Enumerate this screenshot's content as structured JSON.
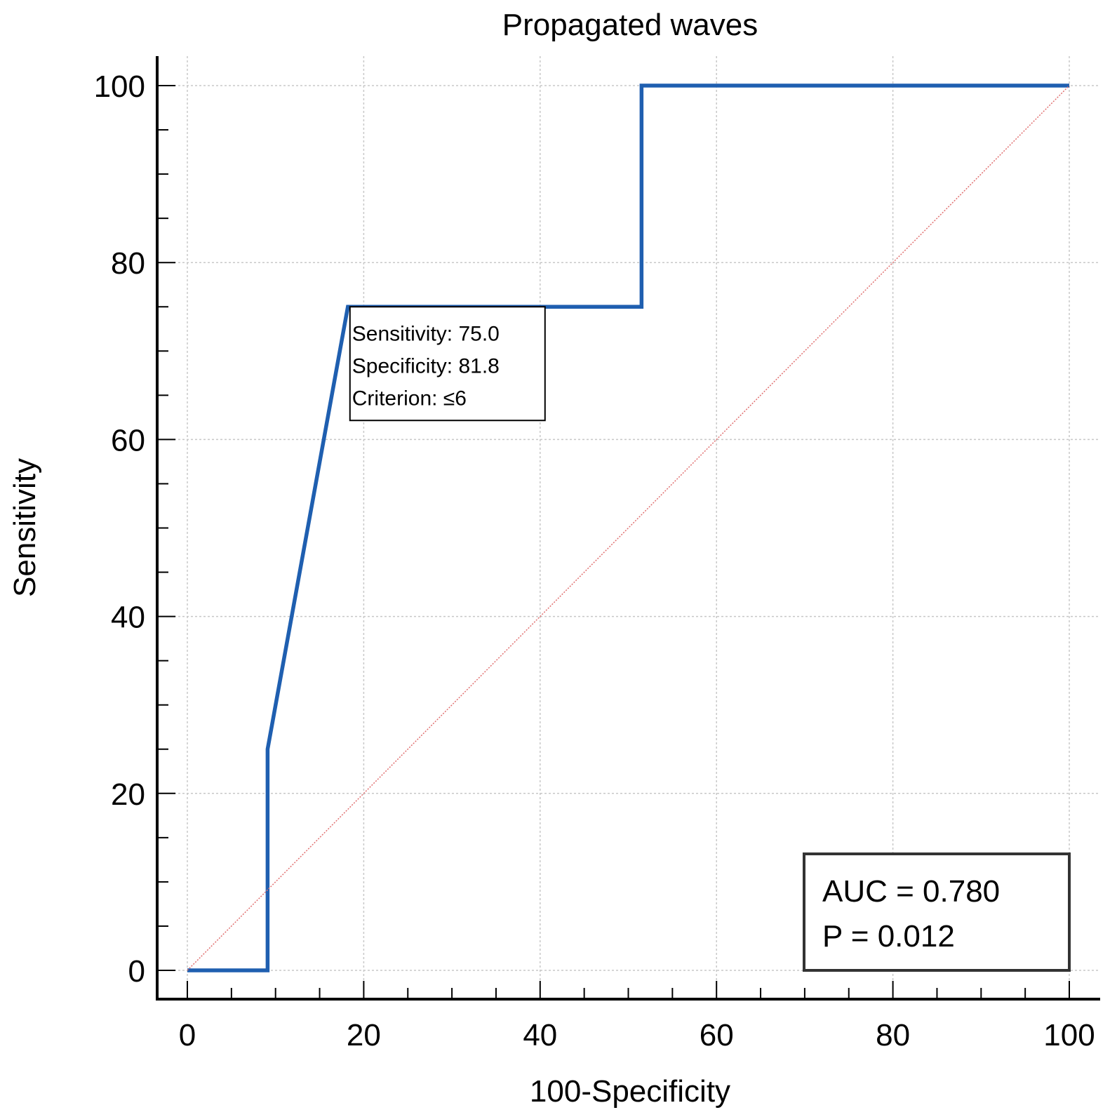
{
  "chart_data": {
    "type": "line",
    "title": "Propagated waves",
    "xlabel": "100-Specificity",
    "ylabel": "Sensitivity",
    "xlim": [
      0,
      100
    ],
    "ylim": [
      0,
      100
    ],
    "x_ticks": [
      "0",
      "20",
      "40",
      "60",
      "80",
      "100"
    ],
    "y_ticks": [
      "0",
      "20",
      "40",
      "60",
      "80",
      "100"
    ],
    "grid": true,
    "series": [
      {
        "color": "#1f5fb0",
        "x": [
          0,
          9.1,
          9.1,
          18.2,
          51.5,
          51.5,
          100
        ],
        "y": [
          0,
          0,
          25,
          75,
          75,
          100,
          100
        ]
      },
      {
        "color": "#e07070",
        "style": "dotted-diagonal",
        "x": [
          0,
          100
        ],
        "y": [
          0,
          100
        ]
      }
    ],
    "annotation": {
      "lines": [
        "Sensitivity: 75.0",
        "Specificity: 81.8",
        "Criterion: ≤6"
      ],
      "anchor_x": 18.2,
      "anchor_y": 75
    },
    "stats_box": {
      "lines": [
        "AUC = 0.780",
        "P = 0.012"
      ],
      "position": "bottom-right"
    }
  }
}
